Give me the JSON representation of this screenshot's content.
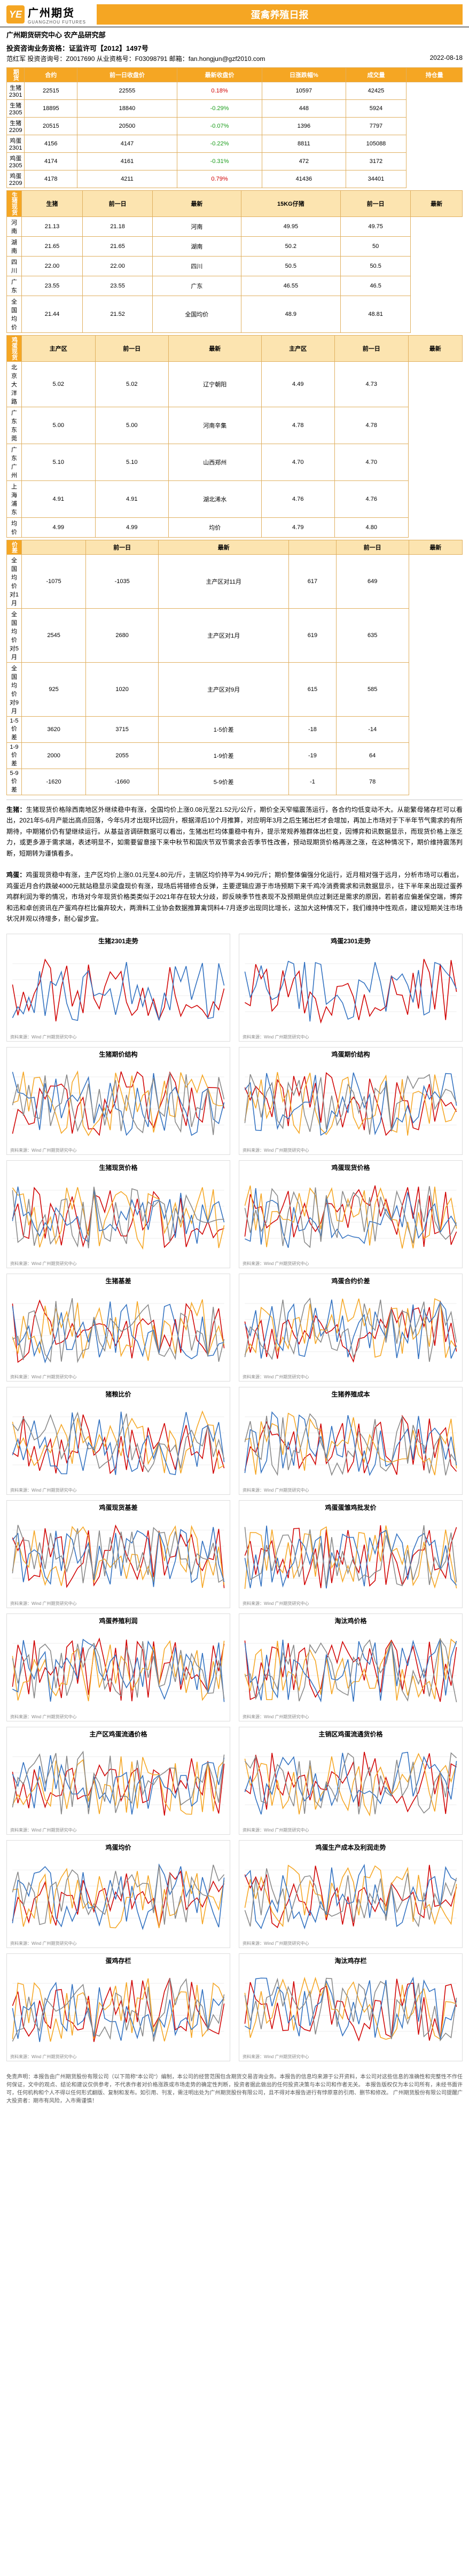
{
  "header": {
    "logo_cn": "广州期货",
    "logo_en": "GUANGZHOU FUTURES",
    "logo_mark": "YE",
    "title": "蛋禽养殖日报",
    "dept": "广州期货研究中心  农产品研究部",
    "license": "投资咨询业务资格：证监许可【2012】1497号",
    "analyst": "范红军  投资咨询号：Z0017690  从业资格号：F03098791  邮箱：fan.hongjun@gzf2010.com",
    "date": "2022-08-18"
  },
  "futures": {
    "section": "期货",
    "columns": [
      "合约",
      "前一日收盘价",
      "最新收盘价",
      "日涨跌幅%",
      "成交量",
      "持仓量"
    ],
    "rows": [
      {
        "c": "生猪2301",
        "p": "22515",
        "l": "22555",
        "d": "0.18%",
        "dc": "pos",
        "v": "10597",
        "oi": "42425"
      },
      {
        "c": "生猪2305",
        "p": "18895",
        "l": "18840",
        "d": "-0.29%",
        "dc": "neg",
        "v": "448",
        "oi": "5924"
      },
      {
        "c": "生猪2209",
        "p": "20515",
        "l": "20500",
        "d": "-0.07%",
        "dc": "neg",
        "v": "1396",
        "oi": "7797"
      },
      {
        "c": "鸡蛋2301",
        "p": "4156",
        "l": "4147",
        "d": "-0.22%",
        "dc": "neg",
        "v": "8811",
        "oi": "105088"
      },
      {
        "c": "鸡蛋2305",
        "p": "4174",
        "l": "4161",
        "d": "-0.31%",
        "dc": "neg",
        "v": "472",
        "oi": "3172"
      },
      {
        "c": "鸡蛋2209",
        "p": "4178",
        "l": "4211",
        "d": "0.79%",
        "dc": "pos",
        "v": "41436",
        "oi": "34401"
      }
    ]
  },
  "hog_spot": {
    "section": "生猪现货",
    "columns": [
      "生猪",
      "前一日",
      "最新",
      "15KG仔猪",
      "前一日",
      "最新"
    ],
    "rows": [
      {
        "a": "河南",
        "p": "21.13",
        "l": "21.18",
        "b": "河南",
        "bp": "49.95",
        "bl": "49.75"
      },
      {
        "a": "湖南",
        "p": "21.65",
        "l": "21.65",
        "b": "湖南",
        "bp": "50.2",
        "bl": "50"
      },
      {
        "a": "四川",
        "p": "22.00",
        "l": "22.00",
        "b": "四川",
        "bp": "50.5",
        "bl": "50.5"
      },
      {
        "a": "广东",
        "p": "23.55",
        "l": "23.55",
        "b": "广东",
        "bp": "46.55",
        "bl": "46.5"
      },
      {
        "a": "全国均价",
        "p": "21.44",
        "l": "21.52",
        "b": "全国均价",
        "bp": "48.9",
        "bl": "48.81"
      }
    ]
  },
  "egg_spot": {
    "section": "鸡蛋现货",
    "columns": [
      "主产区",
      "前一日",
      "最新",
      "主产区",
      "前一日",
      "最新"
    ],
    "rows": [
      {
        "a": "北京大洋路",
        "p": "5.02",
        "l": "5.02",
        "b": "辽宁朝阳",
        "bp": "4.49",
        "bl": "4.73"
      },
      {
        "a": "广东东莞",
        "p": "5.00",
        "l": "5.00",
        "b": "河南辛集",
        "bp": "4.78",
        "bl": "4.78"
      },
      {
        "a": "广东广州",
        "p": "5.10",
        "l": "5.10",
        "b": "山西郑州",
        "bp": "4.70",
        "bl": "4.70"
      },
      {
        "a": "上海浦东",
        "p": "4.91",
        "l": "4.91",
        "b": "湖北浠水",
        "bp": "4.76",
        "bl": "4.76"
      },
      {
        "a": "均价",
        "p": "4.99",
        "l": "4.99",
        "b": "均价",
        "bp": "4.79",
        "bl": "4.80"
      }
    ]
  },
  "basis": {
    "section": "价差",
    "columns": [
      "",
      "前一日",
      "最新",
      "",
      "前一日",
      "最新"
    ],
    "rows": [
      {
        "a": "全国均价对1月",
        "p": "-1075",
        "l": "-1035",
        "b": "主产区对11月",
        "bp": "617",
        "bl": "649"
      },
      {
        "a": "全国均价对5月",
        "p": "2545",
        "l": "2680",
        "b": "主产区对1月",
        "bp": "619",
        "bl": "635"
      },
      {
        "a": "全国均价对9月",
        "p": "925",
        "l": "1020",
        "b": "主产区对9月",
        "bp": "615",
        "bl": "585"
      },
      {
        "a": "1-5价差",
        "p": "3620",
        "l": "3715",
        "b": "1-5价差",
        "bp": "-18",
        "bl": "-14"
      },
      {
        "a": "1-9价差",
        "p": "2000",
        "l": "2055",
        "b": "1-9价差",
        "bp": "-19",
        "bl": "64"
      },
      {
        "a": "5-9价差",
        "p": "-1620",
        "l": "-1660",
        "b": "5-9价差",
        "bp": "-1",
        "bl": "78"
      }
    ]
  },
  "analysis": {
    "hog_label": "生猪：",
    "hog_text": "生猪现货价格除西南地区外继续稳中有涨，全国均价上涨0.08元至21.52元/公斤，期价全天窄幅震荡运行，各合约均低变动不大。从能繁母猪存栏可以看出，2021年5-6月产能出高点回落，今年5月才出现环比回升，根据滞后10个月推算，对应明年3月之后生猪出栏才会增加，再加上市场对于下半年节气需求的有所期待，中期猪价仍有望继续运行。从基益咨调研数据可以看出，生猪出栏均体重稳中有升，提示常规养殖群体出栏变，因博弈和讯数据显示，而现货价格上涨乏力，或更多源于需求端，表述明显不，如需要留意接下来中秋节和国庆节双节需求会否季节性改善，预动现期货价格再涨之涨，在这种情况下，期价维持震荡判断，短期转为谨慎看多。",
    "egg_label": "鸡蛋：",
    "egg_text": "鸡蛋现货稳中有涨，主产区均价上涨0.01元至4.80元/斤，主销区均价持平为4.99元/斤；期价整体偏强分化运行，近月相对强于远月，分析市场可以看出，鸡蛋近月合约跌破4000元就站稳显示梁盘现价有涨，现场后将错修合反弹，主要逻辑应源于市场预期下来千鸡冷消费需求和讯数据显示，往下半年来出现过蛋养鸡群利润为零的情况，市场对今年现货价格类类似于2021年存在较大分歧，即反映季节性表现不及预期是供应过剩还是需求的原因，若前者应偏差保空端，博弈和迅和卓创资讯在产蛋鸡存栏比偏弃较大，两滑料工业协会数据推算禽饲料4-7月逐步出现同比增长，这加大这种情况下，我们维持中性观点，建议短期关注市场状况并观以待增多，耐心留步宜。"
  },
  "chart_titles": [
    "生猪2301走势",
    "鸡蛋2301走势",
    "生猪期价结构",
    "鸡蛋期价结构",
    "生猪现货价格",
    "鸡蛋现货价格",
    "生猪基差",
    "鸡蛋合约价差",
    "猪粮比价",
    "生猪养殖成本",
    "鸡蛋现货基差",
    "鸡蛋蛋雏鸡批发价",
    "鸡蛋养殖利润",
    "淘汰鸡价格",
    "主产区鸡蛋流通价格",
    "主销区鸡蛋流通货价格",
    "鸡蛋均价",
    "鸡蛋生产成本及利润走势",
    "蛋鸡存栏",
    "淘汰鸡存栏"
  ],
  "chart_source": "资料来源：Wind 广州期货研究中心",
  "disclaimer": "免责声明：本报告由广州期货股份有限公司（以下简称\"本公司\"）编制，本公司的经营范围包含期货交易咨询业务。本报告的信息均来源于公开资料，本公司对这些信息的准确性和完整性不作任何保证，文中的观点、结论和建议仅供参考，不代表作者对价格涨跌或市场走势的确定性判断，投资者据此做出的任何投资决策与本公司和作者无关。\n本报告版权仅为本公司所有，未经书面许可，任何机构和个人不得以任何形式翻版、复制和发布。如引用、刊发，需注明出处为广州期货股份有限公司，且不得对本报告进行有悖原意的引用、删节和修改。\n广州期货股份有限公司提醒广大投资者：期市有风险，入市需谨慎！"
}
